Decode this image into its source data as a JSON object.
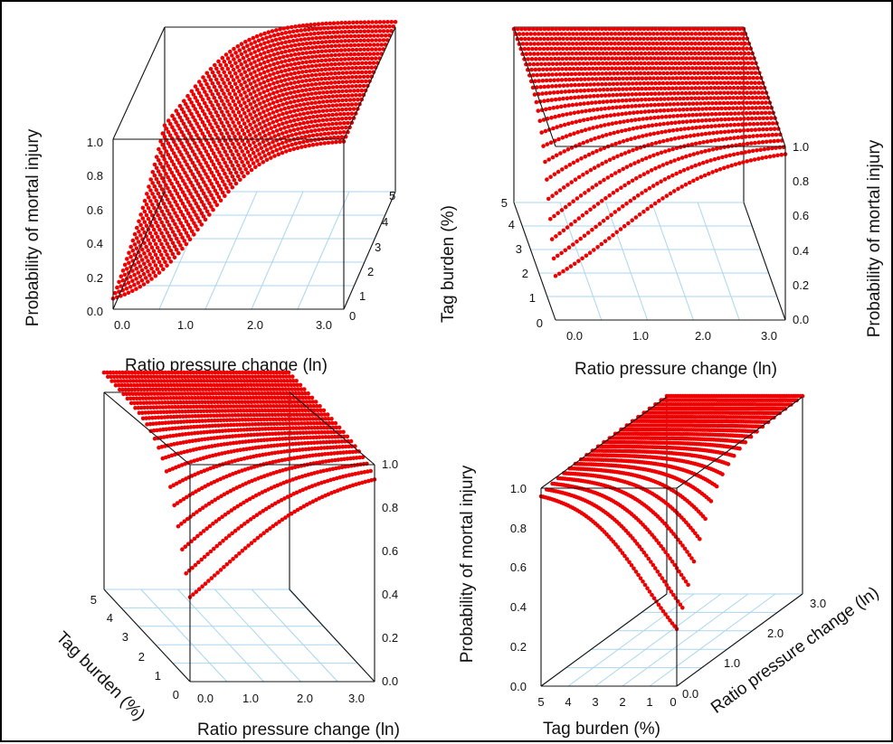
{
  "chart_data": [
    {
      "type": "scatter",
      "subtype": "3d-surface-points",
      "panel": "top-left",
      "function": "logistic",
      "z_axis": {
        "label": "Probability of mortal injury",
        "range": [
          0.0,
          1.0
        ],
        "ticks": [
          "0.0",
          "0.2",
          "0.4",
          "0.6",
          "0.8",
          "1.0"
        ]
      },
      "x_axis": {
        "label": "Ratio pressure change (ln)",
        "range": [
          0.0,
          3.0
        ],
        "ticks": [
          "0.0",
          "1.0",
          "2.0",
          "3.0"
        ]
      },
      "y_axis": {
        "label": "",
        "range": [
          0,
          5
        ],
        "ticks": [
          "0",
          "1",
          "2",
          "3",
          "4",
          "5"
        ]
      },
      "point_color": "#ee0000",
      "floor_grid_color": "#a9d6ec"
    },
    {
      "type": "scatter",
      "subtype": "3d-surface-points",
      "panel": "top-right",
      "function": "logistic",
      "z_axis": {
        "label": "Probability of mortal injury",
        "range": [
          0.0,
          1.0
        ],
        "ticks": [
          "0.0",
          "0.2",
          "0.4",
          "0.6",
          "0.8",
          "1.0"
        ]
      },
      "x_axis": {
        "label": "Ratio pressure change (ln)",
        "range": [
          0.0,
          3.0
        ],
        "ticks": [
          "0.0",
          "1.0",
          "2.0",
          "3.0"
        ]
      },
      "y_axis": {
        "label": "Tag burden (%)",
        "range": [
          0,
          5
        ],
        "ticks": [
          "0",
          "1",
          "2",
          "3",
          "4",
          "5"
        ]
      },
      "point_color": "#ee0000",
      "floor_grid_color": "#a9d6ec"
    },
    {
      "type": "scatter",
      "subtype": "3d-surface-points",
      "panel": "bottom-left",
      "function": "logistic",
      "z_axis": {
        "label": "",
        "range": [
          0.0,
          1.0
        ],
        "ticks": [
          "0.0",
          "0.2",
          "0.4",
          "0.6",
          "0.8",
          "1.0"
        ]
      },
      "x_axis": {
        "label": "Ratio pressure change (ln)",
        "range": [
          0.0,
          3.0
        ],
        "ticks": [
          "0.0",
          "1.0",
          "2.0",
          "3.0"
        ]
      },
      "y_axis": {
        "label": "Tag burden (%)",
        "range": [
          0,
          5
        ],
        "ticks": [
          "0",
          "1",
          "2",
          "3",
          "4",
          "5"
        ]
      },
      "point_color": "#ee0000",
      "floor_grid_color": "#a9d6ec"
    },
    {
      "type": "scatter",
      "subtype": "3d-surface-points",
      "panel": "bottom-right",
      "function": "logistic",
      "z_axis": {
        "label": "Probability of mortal injury",
        "range": [
          0.0,
          1.0
        ],
        "ticks": [
          "0.0",
          "0.2",
          "0.4",
          "0.6",
          "0.8",
          "1.0"
        ]
      },
      "x_axis": {
        "label": "Tag burden (%)",
        "range": [
          5,
          0
        ],
        "ticks": [
          "5",
          "4",
          "3",
          "2",
          "1",
          "0"
        ]
      },
      "y_axis": {
        "label": "Ratio pressure change (ln)",
        "range": [
          0.0,
          3.0
        ],
        "ticks": [
          "0.0",
          "1.0",
          "2.0",
          "3.0"
        ]
      },
      "point_color": "#ee0000",
      "floor_grid_color": "#a9d6ec"
    }
  ]
}
